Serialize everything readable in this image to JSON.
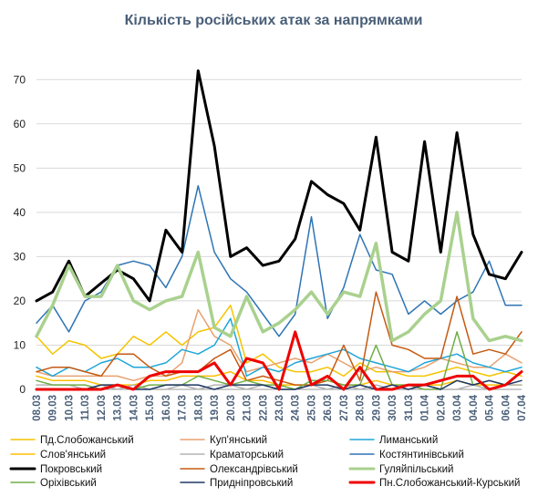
{
  "chart_data": {
    "type": "line",
    "title": "Кількість російських атак за напрямками",
    "xlabel": "",
    "ylabel": "",
    "ylim": [
      0,
      75
    ],
    "yticks": [
      0,
      10,
      20,
      30,
      40,
      50,
      60,
      70
    ],
    "grid": "horizontal",
    "legend_position": "bottom",
    "categories": [
      "08.03",
      "09.03",
      "10.03",
      "11.03",
      "12.03",
      "13.03",
      "14.03",
      "15.03",
      "16.03",
      "17.03",
      "18.03",
      "19.03",
      "20.03",
      "21.03",
      "22.03",
      "23.03",
      "24.03",
      "25.03",
      "26.03",
      "27.03",
      "28.03",
      "29.03",
      "30.03",
      "31.03",
      "01.04",
      "02.04",
      "03.04",
      "04.04",
      "05.04",
      "06.04",
      "07.04"
    ],
    "series": [
      {
        "name": "Пд.Слобожанський",
        "color": "#f5c400",
        "width": 1.5,
        "values": [
          12,
          8,
          11,
          10,
          7,
          8,
          12,
          10,
          13,
          10,
          13,
          14,
          19,
          6,
          8,
          5,
          4,
          4,
          5,
          3,
          6,
          4,
          4,
          3,
          3,
          4,
          5,
          4,
          3,
          4,
          3
        ]
      },
      {
        "name": "Куп'янський",
        "color": "#e8a170",
        "width": 1.5,
        "values": [
          4,
          3,
          3,
          3,
          3,
          3,
          2,
          3,
          3,
          6,
          18,
          12,
          10,
          4,
          5,
          6,
          7,
          6,
          8,
          6,
          4,
          5,
          4,
          4,
          5,
          7,
          6,
          5,
          5,
          8,
          6
        ]
      },
      {
        "name": "Лиманський",
        "color": "#1fa6d9",
        "width": 1.5,
        "values": [
          5,
          3,
          5,
          4,
          6,
          7,
          5,
          5,
          6,
          9,
          8,
          10,
          16,
          3,
          5,
          4,
          6,
          7,
          8,
          9,
          7,
          6,
          5,
          4,
          6,
          7,
          8,
          6,
          5,
          4,
          5
        ]
      },
      {
        "name": "Слов'янський",
        "color": "#ffbf00",
        "width": 1.5,
        "values": [
          3,
          2,
          2,
          2,
          1,
          1,
          1,
          2,
          2,
          3,
          3,
          3,
          4,
          2,
          2,
          1,
          1,
          1,
          2,
          1,
          1,
          2,
          1,
          1,
          1,
          1,
          2,
          1,
          1,
          1,
          1
        ]
      },
      {
        "name": "Краматорський",
        "color": "#b3b3b3",
        "width": 1.5,
        "values": [
          1,
          1,
          1,
          0,
          1,
          0,
          1,
          0,
          0,
          1,
          0,
          1,
          1,
          0,
          1,
          0,
          0,
          1,
          0,
          1,
          0,
          1,
          0,
          0,
          1,
          0,
          0,
          1,
          0,
          1,
          1
        ]
      },
      {
        "name": "Костянтинівський",
        "color": "#2e74b5",
        "width": 1.5,
        "values": [
          15,
          19,
          13,
          20,
          22,
          28,
          29,
          28,
          23,
          30,
          46,
          31,
          25,
          22,
          17,
          12,
          17,
          39,
          16,
          23,
          35,
          27,
          26,
          17,
          20,
          17,
          20,
          22,
          29,
          19,
          19
        ]
      },
      {
        "name": "Покровський",
        "color": "#000000",
        "width": 3,
        "values": [
          20,
          22,
          29,
          21,
          24,
          27,
          25,
          20,
          36,
          31,
          72,
          55,
          30,
          32,
          28,
          29,
          34,
          47,
          44,
          42,
          36,
          57,
          31,
          29,
          56,
          31,
          58,
          35,
          26,
          25,
          31
        ]
      },
      {
        "name": "Олександрівський",
        "color": "#c55a11",
        "width": 1.5,
        "values": [
          4,
          5,
          5,
          4,
          3,
          8,
          8,
          5,
          3,
          4,
          4,
          7,
          9,
          2,
          3,
          2,
          1,
          1,
          2,
          10,
          2,
          22,
          10,
          9,
          7,
          7,
          21,
          8,
          9,
          8,
          13
        ]
      },
      {
        "name": "Гуляйпільський",
        "color": "#a9d18e",
        "width": 3.5,
        "values": [
          12,
          19,
          28,
          21,
          21,
          28,
          20,
          18,
          20,
          21,
          31,
          14,
          12,
          21,
          13,
          15,
          18,
          22,
          17,
          22,
          21,
          33,
          11,
          13,
          17,
          20,
          40,
          16,
          11,
          12,
          11
        ]
      },
      {
        "name": "Оріхівський",
        "color": "#70ad47",
        "width": 1.5,
        "values": [
          2,
          1,
          1,
          1,
          0,
          1,
          0,
          1,
          1,
          1,
          3,
          2,
          1,
          2,
          1,
          1,
          0,
          2,
          2,
          1,
          1,
          10,
          1,
          1,
          0,
          0,
          13,
          1,
          2,
          1,
          4
        ]
      },
      {
        "name": "Придніпровський",
        "color": "#1f3864",
        "width": 1.5,
        "values": [
          0,
          0,
          0,
          0,
          1,
          1,
          0,
          0,
          1,
          1,
          1,
          0,
          1,
          1,
          1,
          0,
          0,
          1,
          1,
          0,
          1,
          0,
          1,
          0,
          1,
          0,
          2,
          1,
          2,
          1,
          2
        ]
      },
      {
        "name": "Пн.Слобожанський-Курський",
        "color": "#ee0000",
        "width": 3,
        "values": [
          0,
          0,
          0,
          0,
          0,
          1,
          0,
          3,
          4,
          4,
          4,
          6,
          1,
          7,
          6,
          0,
          13,
          1,
          3,
          0,
          5,
          0,
          0,
          1,
          1,
          2,
          3,
          3,
          0,
          1,
          4
        ]
      }
    ]
  }
}
